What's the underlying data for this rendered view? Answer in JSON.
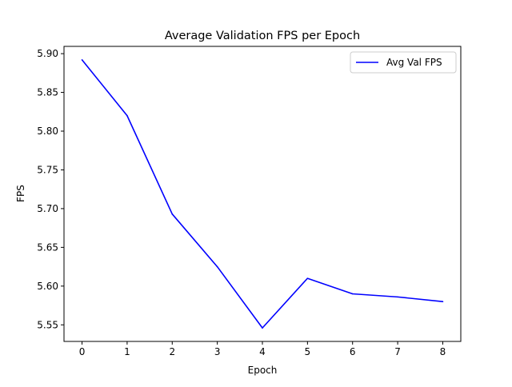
{
  "chart_data": {
    "type": "line",
    "title": "Average Validation FPS per Epoch",
    "xlabel": "Epoch",
    "ylabel": "FPS",
    "x": [
      0,
      1,
      2,
      3,
      4,
      5,
      6,
      7,
      8
    ],
    "series": [
      {
        "name": "Avg Val FPS",
        "color": "#0000ff",
        "values": [
          5.892,
          5.82,
          5.693,
          5.625,
          5.546,
          5.61,
          5.59,
          5.586,
          5.58
        ]
      }
    ],
    "xticks": [
      "0",
      "1",
      "2",
      "3",
      "4",
      "5",
      "6",
      "7",
      "8"
    ],
    "yticks": [
      "5.55",
      "5.60",
      "5.65",
      "5.70",
      "5.75",
      "5.80",
      "5.85",
      "5.90"
    ],
    "xlim": [
      -0.4,
      8.4
    ],
    "ylim": [
      5.5286,
      5.9094
    ],
    "grid": false,
    "legend_position": "top-right"
  }
}
